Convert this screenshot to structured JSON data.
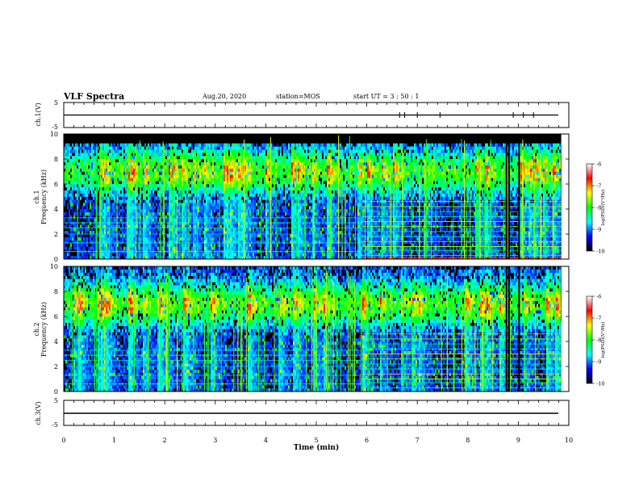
{
  "header": {
    "title": "VLF Spectra",
    "date": "Aug.20, 2020",
    "station": "station=MOS",
    "start": "start  UT =  3 : 50 : 1"
  },
  "chart_data": [
    {
      "type": "line",
      "panel": "ch1-waveform",
      "ylabel": "ch.1(V)",
      "ylim": [
        -5,
        5
      ],
      "yticks": [
        "5",
        "-5"
      ],
      "xlim": [
        0,
        10
      ],
      "baseline": 0,
      "spikes_min": [
        6.65,
        6.75,
        7.0,
        7.45,
        8.9,
        9.1,
        9.3
      ]
    },
    {
      "type": "heatmap",
      "panel": "ch1-spectrogram",
      "ylabel": "ch.1 Frequency (kHz)",
      "ylim": [
        0,
        10
      ],
      "yticks": [
        "0",
        "2",
        "4",
        "6",
        "8",
        "10"
      ],
      "xlim": [
        0,
        10
      ],
      "data_end_min": 9.85,
      "regime_change_min": 5.9,
      "colorbar": {
        "label": "log(PSD)(V²/Hz)",
        "range": [
          -10,
          -6
        ],
        "ticks": [
          "-6",
          "-7",
          "-8",
          "-9",
          "-10"
        ],
        "colors": [
          "#000000",
          "#0000ff",
          "#00ffff",
          "#00ff00",
          "#ffff00",
          "#ff0000",
          "#ffffff"
        ]
      }
    },
    {
      "type": "heatmap",
      "panel": "ch2-spectrogram",
      "ylabel": "ch.2 Frequency (kHz)",
      "ylim": [
        0,
        10
      ],
      "yticks": [
        "0",
        "2",
        "4",
        "6",
        "8",
        "10"
      ],
      "xlim": [
        0,
        10
      ],
      "data_end_min": 9.85,
      "regime_change_min": 5.9,
      "colorbar": {
        "label": "log(PSD)(V²/Hz)",
        "range": [
          -10,
          -6
        ],
        "ticks": [
          "-6",
          "-7",
          "-8",
          "-9",
          "-10"
        ],
        "colors": [
          "#000000",
          "#0000ff",
          "#00ffff",
          "#00ff00",
          "#ffff00",
          "#ff0000",
          "#ffffff"
        ]
      }
    },
    {
      "type": "line",
      "panel": "ch3-waveform",
      "ylabel": "ch.3(V)",
      "ylim": [
        -5,
        5
      ],
      "yticks": [
        "5",
        "-5"
      ],
      "xlim": [
        0,
        10
      ],
      "baseline": 0,
      "spikes_min": []
    }
  ],
  "xaxis": {
    "label": "Time (min)",
    "ticks": [
      "0",
      "1",
      "2",
      "3",
      "4",
      "5",
      "6",
      "7",
      "8",
      "9",
      "10"
    ]
  },
  "ylabels": {
    "ch1_wave": "ch.1(V)",
    "ch1_spec_a": "ch.1",
    "ch1_spec_b": "Frequency (kHz)",
    "ch2_spec_a": "ch.2",
    "ch2_spec_b": "Frequency (kHz)",
    "ch3_wave": "ch.3(V)"
  }
}
